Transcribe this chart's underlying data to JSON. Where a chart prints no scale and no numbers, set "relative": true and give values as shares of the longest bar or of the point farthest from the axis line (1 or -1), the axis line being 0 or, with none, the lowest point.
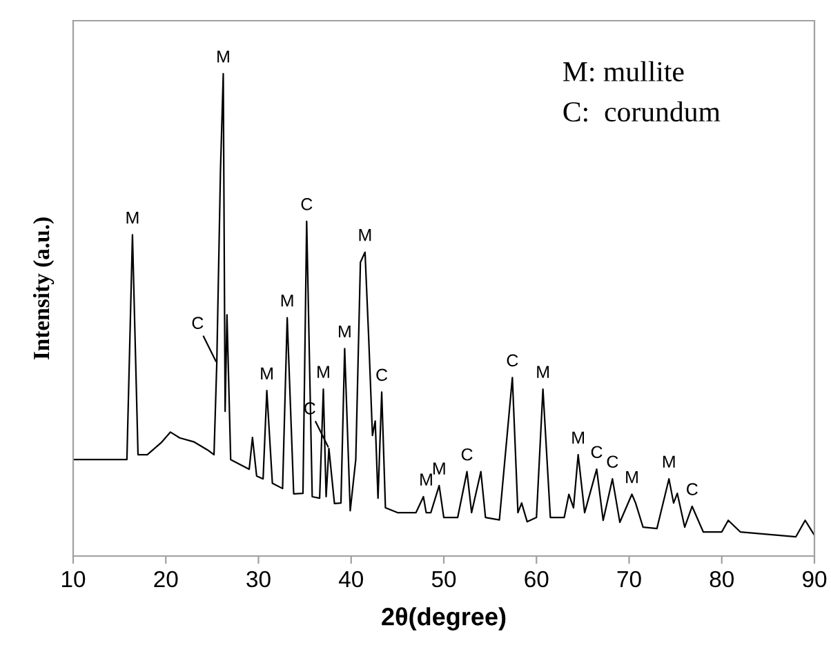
{
  "chart_data": {
    "type": "line",
    "relative": true,
    "xlabel": "2θ(degree)",
    "ylabel": "Intensity (a.u.)",
    "xlim": [
      10,
      90
    ],
    "xticks": [
      10,
      20,
      30,
      40,
      50,
      60,
      70,
      80,
      90
    ],
    "grid": false,
    "marker": "none",
    "line_style": "solid",
    "series": [
      {
        "color": "#000000",
        "x": [
          10,
          12,
          14,
          15.8,
          16.4,
          17.0,
          18,
          19.5,
          20.5,
          21.5,
          23,
          24.5,
          25.2,
          25.5,
          25.9,
          26.2,
          26.4,
          26.6,
          27.0,
          28,
          29.0,
          29.35,
          29.8,
          30.5,
          30.9,
          31.5,
          32.6,
          33.1,
          33.8,
          34.8,
          35.2,
          35.8,
          36.6,
          37.0,
          37.3,
          37.6,
          38.2,
          38.9,
          39.3,
          39.9,
          40.5,
          41.0,
          41.5,
          41.9,
          42.3,
          42.6,
          42.9,
          43.3,
          43.7,
          45,
          47,
          47.8,
          48.1,
          48.6,
          49.5,
          50,
          51.5,
          52.5,
          53.0,
          54.0,
          54.5,
          56,
          57.4,
          58.0,
          58.4,
          59,
          60.0,
          60.7,
          61.5,
          63,
          63.5,
          64.0,
          64.5,
          65.2,
          66.5,
          67.2,
          68.2,
          69.0,
          70.3,
          70.7,
          71.5,
          73,
          74.3,
          74.8,
          75.2,
          76.0,
          76.8,
          78,
          80,
          80.7,
          82,
          85,
          88,
          89.0,
          90
        ],
        "values": [
          0.2,
          0.2,
          0.2,
          0.2,
          0.666,
          0.21,
          0.21,
          0.235,
          0.257,
          0.245,
          0.237,
          0.22,
          0.21,
          0.4,
          0.8,
          1.0,
          0.3,
          0.5,
          0.2,
          0.19,
          0.18,
          0.246,
          0.166,
          0.16,
          0.343,
          0.151,
          0.14,
          0.494,
          0.129,
          0.13,
          0.694,
          0.123,
          0.12,
          0.346,
          0.123,
          0.223,
          0.109,
          0.11,
          0.43,
          0.094,
          0.2,
          0.609,
          0.63,
          0.45,
          0.25,
          0.28,
          0.12,
          0.34,
          0.1,
          0.09,
          0.09,
          0.123,
          0.09,
          0.09,
          0.146,
          0.08,
          0.08,
          0.175,
          0.09,
          0.175,
          0.08,
          0.075,
          0.37,
          0.09,
          0.11,
          0.071,
          0.08,
          0.346,
          0.08,
          0.08,
          0.128,
          0.1,
          0.21,
          0.09,
          0.18,
          0.074,
          0.16,
          0.07,
          0.128,
          0.11,
          0.06,
          0.057,
          0.16,
          0.11,
          0.13,
          0.06,
          0.103,
          0.05,
          0.05,
          0.074,
          0.05,
          0.045,
          0.04,
          0.074,
          0.043
        ]
      }
    ],
    "annotations": [
      "M: mullite",
      "C:  corundum",
      {
        "text": "M",
        "x": 16.4,
        "y": 0.666
      },
      {
        "text": "C",
        "x": 25.5,
        "y": 0.4
      },
      {
        "text": "M",
        "x": 26.2,
        "y": 1.0
      },
      {
        "text": "M",
        "x": 30.9,
        "y": 0.343
      },
      {
        "text": "M",
        "x": 33.1,
        "y": 0.494
      },
      {
        "text": "C",
        "x": 35.2,
        "y": 0.694
      },
      {
        "text": "M",
        "x": 37.0,
        "y": 0.346
      },
      {
        "text": "C",
        "x": 37.6,
        "y": 0.223
      },
      {
        "text": "M",
        "x": 39.3,
        "y": 0.43
      },
      {
        "text": "M",
        "x": 41.5,
        "y": 0.63
      },
      {
        "text": "C",
        "x": 43.3,
        "y": 0.34
      },
      {
        "text": "M",
        "x": 48.1,
        "y": 0.123
      },
      {
        "text": "M",
        "x": 49.5,
        "y": 0.146
      },
      {
        "text": "C",
        "x": 52.5,
        "y": 0.175
      },
      {
        "text": "C",
        "x": 57.4,
        "y": 0.37
      },
      {
        "text": "M",
        "x": 60.7,
        "y": 0.346
      },
      {
        "text": "M",
        "x": 64.5,
        "y": 0.21
      },
      {
        "text": "C",
        "x": 66.5,
        "y": 0.18
      },
      {
        "text": "C",
        "x": 68.2,
        "y": 0.16
      },
      {
        "text": "M",
        "x": 70.3,
        "y": 0.128
      },
      {
        "text": "M",
        "x": 74.3,
        "y": 0.16
      },
      {
        "text": "C",
        "x": 76.8,
        "y": 0.103
      }
    ]
  }
}
